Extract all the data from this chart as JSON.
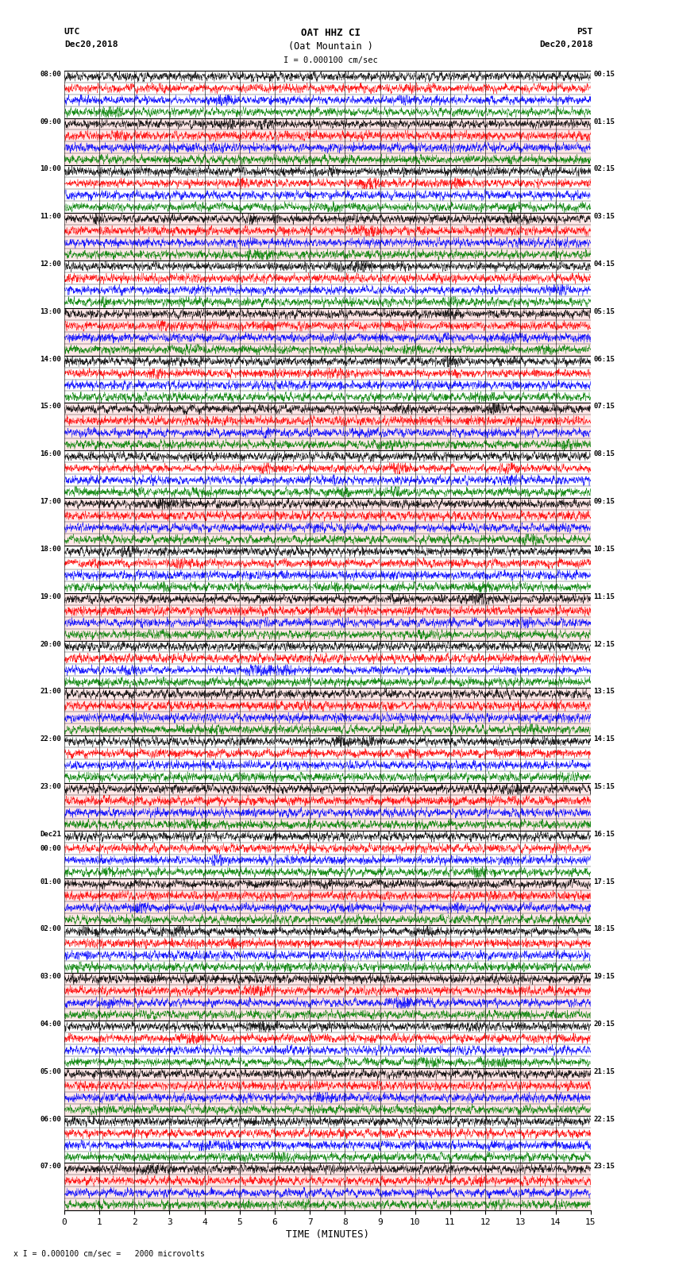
{
  "title_line1": "OAT HHZ CI",
  "title_line2": "(Oat Mountain )",
  "scale_label": "I = 0.000100 cm/sec",
  "bottom_label": "x I = 0.000100 cm/sec =   2000 microvolts",
  "xlabel": "TIME (MINUTES)",
  "left_header_line1": "UTC",
  "left_header_line2": "Dec20,2018",
  "right_header_line1": "PST",
  "right_header_line2": "Dec20,2018",
  "left_times": [
    "08:00",
    "09:00",
    "10:00",
    "11:00",
    "12:00",
    "13:00",
    "14:00",
    "15:00",
    "16:00",
    "17:00",
    "18:00",
    "19:00",
    "20:00",
    "21:00",
    "22:00",
    "23:00",
    "Dec21",
    "00:00",
    "01:00",
    "02:00",
    "03:00",
    "04:00",
    "05:00",
    "06:00",
    "07:00"
  ],
  "right_times": [
    "00:15",
    "01:15",
    "02:15",
    "03:15",
    "04:15",
    "05:15",
    "06:15",
    "07:15",
    "08:15",
    "09:15",
    "10:15",
    "11:15",
    "12:15",
    "13:15",
    "14:15",
    "15:15",
    "16:15",
    "17:15",
    "18:15",
    "19:15",
    "20:15",
    "21:15",
    "22:15",
    "23:15"
  ],
  "n_rows": 24,
  "n_subrows": 4,
  "minutes_per_row": 15,
  "colors": [
    "black",
    "red",
    "blue",
    "green"
  ],
  "fig_width": 8.5,
  "fig_height": 16.13,
  "dpi": 100,
  "xlim": [
    0,
    15
  ],
  "xticks": [
    0,
    1,
    2,
    3,
    4,
    5,
    6,
    7,
    8,
    9,
    10,
    11,
    12,
    13,
    14,
    15
  ],
  "samples_per_minute": 200
}
